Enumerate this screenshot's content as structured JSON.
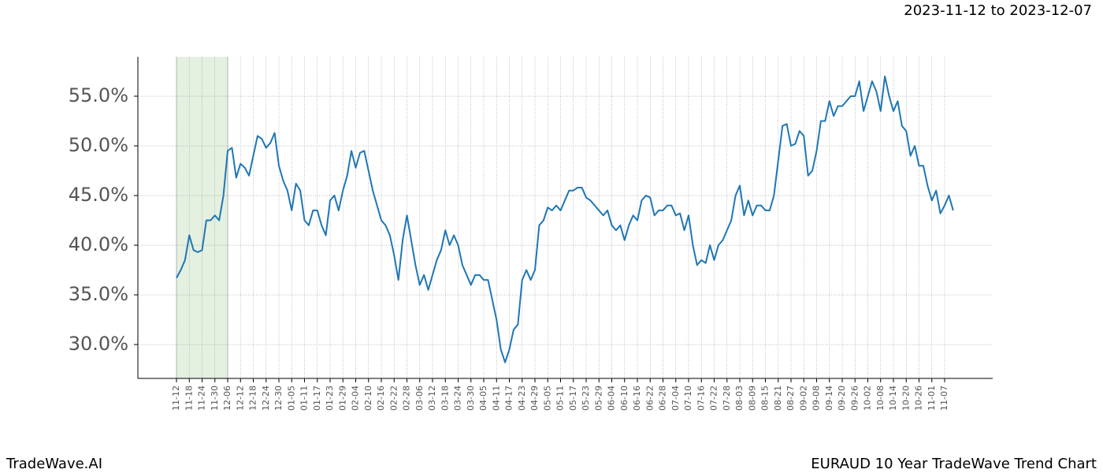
{
  "header": "2023-11-12 to 2023-12-07",
  "footer_left": "TradeWave.AI",
  "footer_right": "EURAUD 10 Year TradeWave Trend Chart",
  "chart_data": {
    "type": "line",
    "grid": true,
    "highlight": {
      "from": 0,
      "to": 12,
      "color": "#d9ead3"
    },
    "ylim": [
      26.59,
      58.97
    ],
    "yticks": [
      {
        "value": 30,
        "label": "30.0%"
      },
      {
        "value": 35,
        "label": "35.0%"
      },
      {
        "value": 40,
        "label": "40.0%"
      },
      {
        "value": 45,
        "label": "45.0%"
      },
      {
        "value": 50,
        "label": "50.0%"
      },
      {
        "value": 55,
        "label": "55.0%"
      }
    ],
    "categories": [
      "11-12",
      null,
      null,
      "11-18",
      null,
      null,
      "11-24",
      null,
      null,
      "11-30",
      null,
      null,
      "12-06",
      null,
      null,
      "12-12",
      null,
      null,
      "12-18",
      null,
      null,
      "12-24",
      null,
      null,
      "12-30",
      null,
      null,
      "01-05",
      null,
      null,
      "01-11",
      null,
      null,
      "01-17",
      null,
      null,
      "01-23",
      null,
      null,
      "01-29",
      null,
      null,
      "02-04",
      null,
      null,
      "02-10",
      null,
      null,
      "02-16",
      null,
      null,
      "02-22",
      null,
      null,
      "02-28",
      null,
      null,
      "03-06",
      null,
      null,
      "03-12",
      null,
      null,
      "03-18",
      null,
      null,
      "03-24",
      null,
      null,
      "03-30",
      null,
      null,
      "04-05",
      null,
      null,
      "04-11",
      null,
      null,
      "04-17",
      null,
      null,
      "04-23",
      null,
      null,
      "04-29",
      null,
      null,
      "05-05",
      null,
      null,
      "05-11",
      null,
      null,
      "05-17",
      null,
      null,
      "05-23",
      null,
      null,
      "05-29",
      null,
      null,
      "06-04",
      null,
      null,
      "06-10",
      null,
      null,
      "06-16",
      null,
      null,
      "06-22",
      null,
      null,
      "06-28",
      null,
      null,
      "07-04",
      null,
      null,
      "07-10",
      null,
      null,
      "07-16",
      null,
      null,
      "07-22",
      null,
      null,
      "07-28",
      null,
      null,
      "08-03",
      null,
      null,
      "08-09",
      null,
      null,
      "08-15",
      null,
      null,
      "08-21",
      null,
      null,
      "08-27",
      null,
      null,
      "09-02",
      null,
      null,
      "09-08",
      null,
      null,
      "09-14",
      null,
      null,
      "09-20",
      null,
      null,
      "09-26",
      null,
      null,
      "10-02",
      null,
      null,
      "10-08",
      null,
      null,
      "10-14",
      null,
      null,
      "10-20",
      null,
      null,
      "10-26",
      null,
      null,
      "11-01",
      null,
      null,
      "11-07",
      null,
      null
    ],
    "series": [
      {
        "color": "#1f77b4",
        "values": [
          36.7,
          37.5,
          38.5,
          41.0,
          39.5,
          39.3,
          39.5,
          42.5,
          42.5,
          43.0,
          42.5,
          45.0,
          49.5,
          49.8,
          46.8,
          48.2,
          47.8,
          47.0,
          49.0,
          51.0,
          50.7,
          49.8,
          50.3,
          51.3,
          48.0,
          46.5,
          45.5,
          43.5,
          46.2,
          45.5,
          42.5,
          42.0,
          43.5,
          43.5,
          42.0,
          41.0,
          44.5,
          45.0,
          43.5,
          45.5,
          47.0,
          49.5,
          47.8,
          49.3,
          49.5,
          47.5,
          45.5,
          44.0,
          42.5,
          42.0,
          41.0,
          39.0,
          36.5,
          40.5,
          43.0,
          40.5,
          38.0,
          36.0,
          37.0,
          35.5,
          37.0,
          38.5,
          39.5,
          41.5,
          40.0,
          41.0,
          40.0,
          38.0,
          37.0,
          36.0,
          37.0,
          37.0,
          36.5,
          36.5,
          34.5,
          32.5,
          29.5,
          28.2,
          29.5,
          31.5,
          32.0,
          36.5,
          37.5,
          36.5,
          37.5,
          42.0,
          42.5,
          43.8,
          43.5,
          44.0,
          43.5,
          44.5,
          45.5,
          45.5,
          45.8,
          45.8,
          44.8,
          44.5,
          44.0,
          43.5,
          43.0,
          43.5,
          42.0,
          41.5,
          42.0,
          40.5,
          42.0,
          43.0,
          42.5,
          44.5,
          45.0,
          44.8,
          43.0,
          43.5,
          43.5,
          44.0,
          44.0,
          43.0,
          43.2,
          41.5,
          43.0,
          40.0,
          38.0,
          38.5,
          38.2,
          40.0,
          38.5,
          40.0,
          40.5,
          41.5,
          42.5,
          45.0,
          46.0,
          43.0,
          44.5,
          43.0,
          44.0,
          44.0,
          43.5,
          43.5,
          45.0,
          48.5,
          52.0,
          52.2,
          50.0,
          50.2,
          51.5,
          51.0,
          47.0,
          47.5,
          49.5,
          52.5,
          52.5,
          54.5,
          53.0,
          54.0,
          54.0,
          54.5,
          55.0,
          55.0,
          56.5,
          53.5,
          55.0,
          56.5,
          55.5,
          53.5,
          57.0,
          55.0,
          53.5,
          54.5,
          52.0,
          51.5,
          49.0,
          50.0,
          48.0,
          48.0,
          46.0,
          44.5,
          45.5,
          43.2,
          44.0,
          45.0,
          43.5
        ]
      }
    ]
  }
}
